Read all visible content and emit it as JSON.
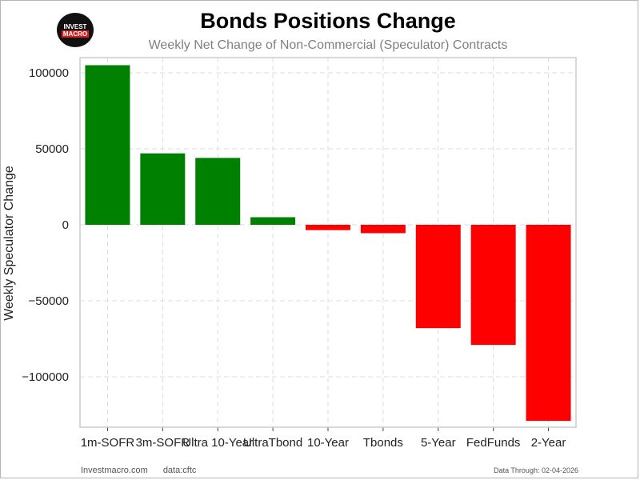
{
  "logo": {
    "line1": "INVEST",
    "line2": "MACRO"
  },
  "footer": {
    "site": "Investmacro.com",
    "source": "data:cftc",
    "date": "Data Through: 02-04-2026"
  },
  "chart_data": {
    "type": "bar",
    "title": "Bonds Positions Change",
    "subtitle": "Weekly Net Change of Non-Commercial (Speculator) Contracts",
    "xlabel": "",
    "ylabel": "Weekly Speculator Change",
    "categories": [
      "1m-SOFR",
      "3m-SOFR",
      "Ultra 10-Year",
      "UltraTbond",
      "10-Year",
      "Tbonds",
      "5-Year",
      "FedFunds",
      "2-Year"
    ],
    "values": [
      105000,
      47000,
      44000,
      5000,
      -3500,
      -5500,
      -68000,
      -79000,
      -129000
    ],
    "ylim": [
      -132000,
      110000
    ],
    "yticks": [
      100000,
      50000,
      0,
      -50000,
      -100000
    ],
    "ytick_labels": [
      "100000",
      "50000",
      "0",
      "−50000",
      "−100000"
    ],
    "grid": true,
    "colors": {
      "positive": "#008000",
      "negative": "#ff0000",
      "grid": "#dddddd",
      "axes": "#cccccc"
    }
  }
}
